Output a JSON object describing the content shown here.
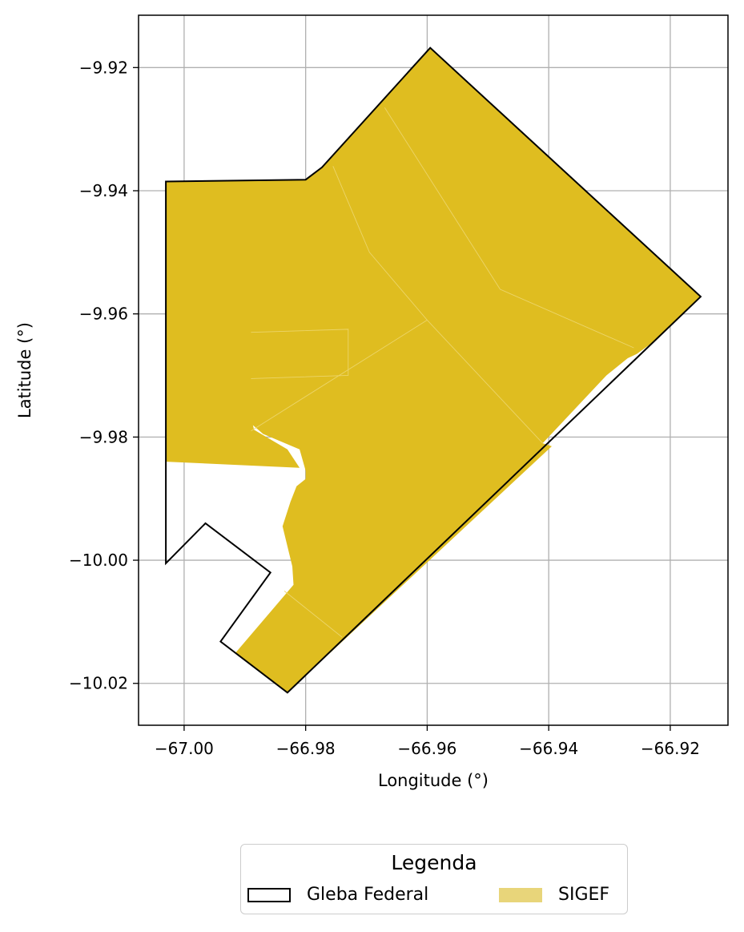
{
  "chart_data": {
    "type": "map",
    "title": "",
    "xlabel": "Longitude (°)",
    "ylabel": "Latitude (°)",
    "xlim": [
      -67.0075,
      -66.9105
    ],
    "ylim": [
      -10.0268,
      -9.9115
    ],
    "x_ticks": [
      -67.0,
      -66.98,
      -66.96,
      -66.94,
      -66.92
    ],
    "x_tick_labels": [
      "−67.00",
      "−66.98",
      "−66.96",
      "−66.94",
      "−66.92"
    ],
    "y_ticks": [
      -9.92,
      -9.94,
      -9.96,
      -9.98,
      -10.0,
      -10.02
    ],
    "y_tick_labels": [
      "−9.92",
      "−9.94",
      "−9.96",
      "−9.98",
      "−10.00",
      "−10.02"
    ],
    "grid": true,
    "layers": [
      {
        "name": "Gleba Federal",
        "style": "outline",
        "color": "#000000",
        "polygon": [
          [
            -67.003,
            -9.9385
          ],
          [
            -66.98,
            -9.9382
          ],
          [
            -66.9773,
            -9.9362
          ],
          [
            -66.9595,
            -9.9168
          ],
          [
            -66.915,
            -9.9572
          ],
          [
            -66.983,
            -10.0215
          ],
          [
            -66.994,
            -10.0132
          ],
          [
            -66.9858,
            -10.002
          ],
          [
            -66.9965,
            -9.994
          ],
          [
            -67.003,
            -10.0005
          ],
          [
            -67.003,
            -9.9385
          ]
        ]
      },
      {
        "name": "SIGEF",
        "style": "fill",
        "color": "#dfbd20",
        "polygon": [
          [
            -67.003,
            -9.9385
          ],
          [
            -66.98,
            -9.9382
          ],
          [
            -66.9773,
            -9.9362
          ],
          [
            -66.9595,
            -9.9168
          ],
          [
            -66.915,
            -9.9572
          ],
          [
            -66.922,
            -9.964
          ],
          [
            -66.9255,
            -9.9665
          ],
          [
            -66.927,
            -9.9672
          ],
          [
            -66.9305,
            -9.97
          ],
          [
            -66.941,
            -9.981
          ],
          [
            -66.9395,
            -9.9815
          ],
          [
            -66.983,
            -10.0215
          ],
          [
            -66.9915,
            -10.015
          ],
          [
            -66.982,
            -10.004
          ],
          [
            -66.9822,
            -10.001
          ],
          [
            -66.9838,
            -9.9945
          ],
          [
            -66.9825,
            -9.9905
          ],
          [
            -66.9815,
            -9.988
          ],
          [
            -66.98,
            -9.9868
          ],
          [
            -66.98,
            -9.9855
          ],
          [
            -66.981,
            -9.982
          ],
          [
            -66.987,
            -9.9795
          ],
          [
            -66.989,
            -9.9778
          ],
          [
            -66.9895,
            -9.9755
          ],
          [
            -66.9893,
            -9.969
          ],
          [
            -66.9888,
            -9.954
          ],
          [
            -66.9882,
            -9.9385
          ],
          [
            -66.988,
            -9.9385
          ],
          [
            -66.9884,
            -9.954
          ],
          [
            -66.989,
            -9.969
          ],
          [
            -66.9892,
            -9.976
          ],
          [
            -66.9885,
            -9.9788
          ],
          [
            -66.983,
            -9.982
          ],
          [
            -66.981,
            -9.985
          ],
          [
            -67.003,
            -9.984
          ],
          [
            -67.003,
            -9.9385
          ]
        ],
        "internal_boundaries": [
          [
            [
              -66.9755,
              -9.936
            ],
            [
              -66.9695,
              -9.95
            ],
            [
              -66.96,
              -9.961
            ],
            [
              -66.941,
              -9.981
            ]
          ],
          [
            [
              -66.967,
              -9.9265
            ],
            [
              -66.948,
              -9.956
            ],
            [
              -66.926,
              -9.9655
            ]
          ],
          [
            [
              -66.96,
              -9.961
            ],
            [
              -66.989,
              -9.979
            ]
          ],
          [
            [
              -66.989,
              -9.963
            ],
            [
              -66.973,
              -9.9625
            ],
            [
              -66.973,
              -9.97
            ],
            [
              -66.989,
              -9.9705
            ]
          ],
          [
            [
              -66.9835,
              -10.005
            ],
            [
              -66.974,
              -10.0125
            ]
          ]
        ]
      }
    ],
    "legend": {
      "title": "Legenda",
      "position": "bottom-center",
      "entries": [
        {
          "label": "Gleba Federal",
          "style": "outline",
          "color": "#000000"
        },
        {
          "label": "SIGEF",
          "style": "fill",
          "color": "#e8d57a"
        }
      ]
    }
  }
}
